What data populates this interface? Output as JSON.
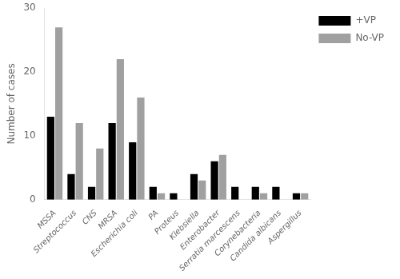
{
  "chart_data": {
    "type": "bar",
    "categories": [
      "MSSA",
      "Streptococcus",
      "CNS",
      "MRSA",
      "Escherichia coli",
      "PA",
      "Proteus",
      "Klebsiella",
      "Enterobacter",
      "Serratia marcescens",
      "Corynebacteria",
      "Candida albicans",
      "Aspergillus"
    ],
    "series": [
      {
        "name": "+VP",
        "color": "#000000",
        "values": [
          13,
          4,
          2,
          12,
          9,
          2,
          1,
          4,
          6,
          2,
          2,
          2,
          1
        ]
      },
      {
        "name": "No-VP",
        "color": "#a0a0a0",
        "values": [
          27,
          12,
          8,
          22,
          16,
          1,
          0,
          3,
          7,
          0,
          1,
          0,
          1
        ]
      }
    ],
    "ylabel": "Number of cases",
    "ylim": [
      0,
      30
    ],
    "yticks": [
      0,
      10,
      20,
      30
    ],
    "grid": false,
    "legend": "right"
  }
}
